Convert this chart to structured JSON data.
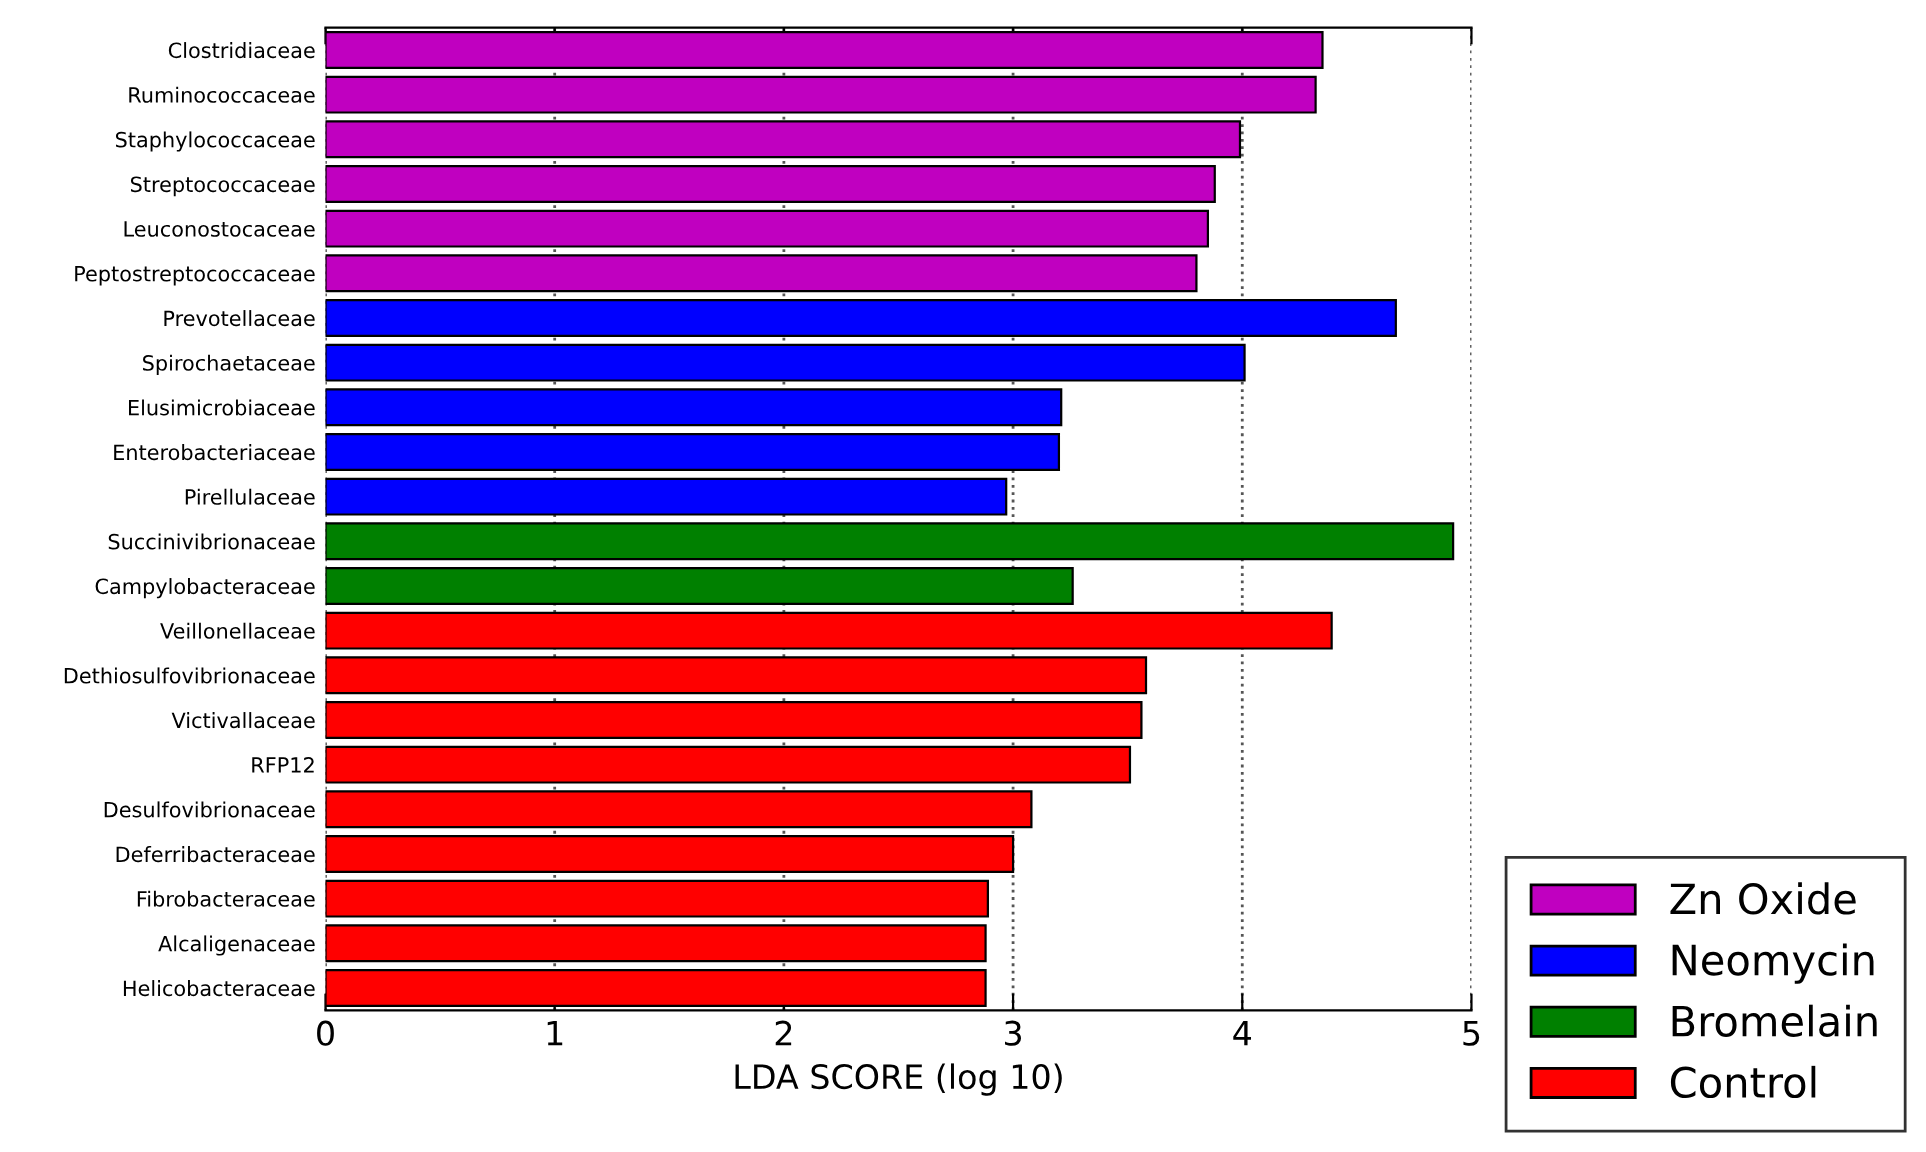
{
  "chart_data": {
    "type": "bar",
    "orientation": "horizontal",
    "xlabel": "LDA SCORE (log 10)",
    "categories": [
      "Clostridiaceae",
      "Ruminococcaceae",
      "Staphylococcaceae",
      "Streptococcaceae",
      "Leuconostocaceae",
      "Peptostreptococcaceae",
      "Prevotellaceae",
      "Spirochaetaceae",
      "Elusimicrobiaceae",
      "Enterobacteriaceae",
      "Pirellulaceae",
      "Succinivibrionaceae",
      "Campylobacteraceae",
      "Veillonellaceae",
      "Dethiosulfovibrionaceae",
      "Victivallaceae",
      "RFP12",
      "Desulfovibrionaceae",
      "Deferribacteraceae",
      "Fibrobacteraceae",
      "Alcaligenaceae",
      "Helicobacteraceae"
    ],
    "series": [
      {
        "name": "Zn Oxide",
        "color": "#c000c0",
        "values": [
          4.35,
          4.32,
          3.99,
          3.88,
          3.85,
          3.8,
          null,
          null,
          null,
          null,
          null,
          null,
          null,
          null,
          null,
          null,
          null,
          null,
          null,
          null,
          null,
          null
        ]
      },
      {
        "name": "Neomycin",
        "color": "#0000ff",
        "values": [
          null,
          null,
          null,
          null,
          null,
          null,
          4.67,
          4.01,
          3.21,
          3.2,
          2.97,
          null,
          null,
          null,
          null,
          null,
          null,
          null,
          null,
          null,
          null,
          null
        ]
      },
      {
        "name": "Bromelain",
        "color": "#008000",
        "values": [
          null,
          null,
          null,
          null,
          null,
          null,
          null,
          null,
          null,
          null,
          null,
          4.92,
          3.26,
          null,
          null,
          null,
          null,
          null,
          null,
          null,
          null,
          null
        ]
      },
      {
        "name": "Control",
        "color": "#ff0000",
        "values": [
          null,
          null,
          null,
          null,
          null,
          null,
          null,
          null,
          null,
          null,
          null,
          null,
          null,
          4.39,
          3.58,
          3.56,
          3.51,
          3.08,
          3.0,
          2.89,
          2.88,
          2.88
        ]
      }
    ],
    "xlim": [
      0,
      5
    ],
    "xticks": [
      0,
      1,
      2,
      3,
      4,
      5
    ],
    "grid": "x",
    "legend": "bottom right"
  }
}
